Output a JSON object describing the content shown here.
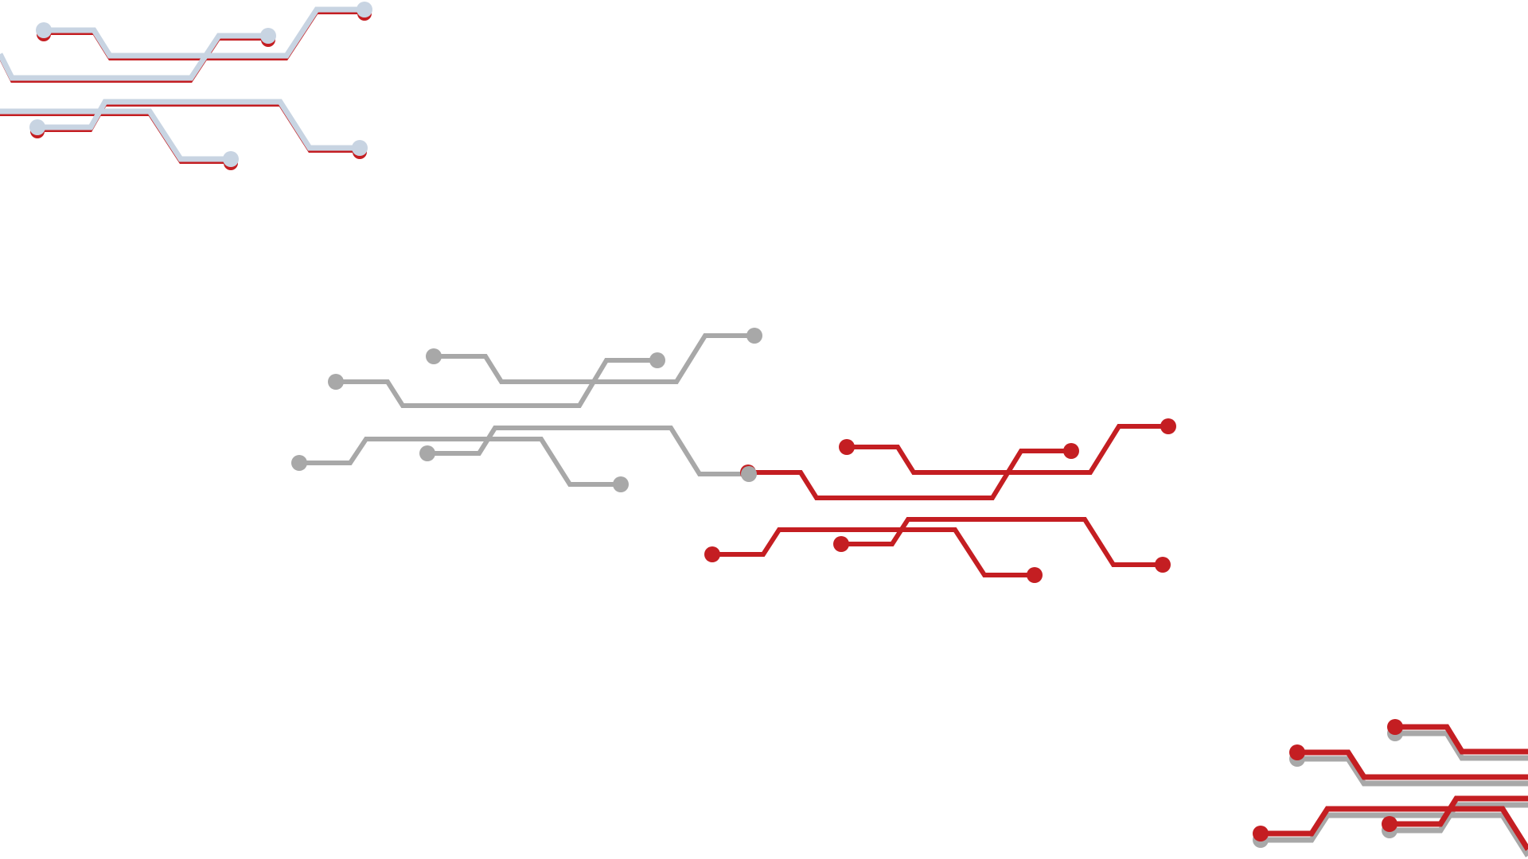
{
  "scene": {
    "background": "#ffffff",
    "motif": "circuit-traces",
    "colors": {
      "red": "#c41e22",
      "gray": "#a8a8a8",
      "light_blue": "#c8d4e2"
    },
    "groups": [
      {
        "id": "circuit-top-left",
        "color": "light_blue",
        "shadow": "red",
        "shadow_direction": "down"
      },
      {
        "id": "circuit-center-gray",
        "color": "gray",
        "shadow": null
      },
      {
        "id": "circuit-center-red",
        "color": "red",
        "shadow": null
      },
      {
        "id": "circuit-bottom-right",
        "color": "red",
        "shadow": "gray",
        "shadow_direction": "down"
      }
    ]
  }
}
